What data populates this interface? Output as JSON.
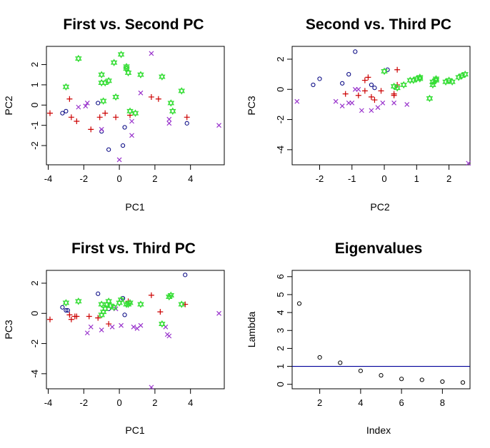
{
  "colors": {
    "circle": "#000080",
    "plus": "#cc0000",
    "x": "#9933cc",
    "star": "#33dd33",
    "refline": "#000099"
  },
  "chart_data": [
    {
      "type": "scatter",
      "title": "First vs. Second PC",
      "xlabel": "PC1",
      "ylabel": "PC2",
      "xlim": [
        -4.1,
        5.9
      ],
      "ylim": [
        -2.95,
        2.9
      ],
      "xticks": [
        -4,
        -2,
        0,
        2,
        4
      ],
      "yticks": [
        -2,
        -1,
        0,
        1,
        2
      ],
      "series": [
        {
          "marker": "circle",
          "color": "#000080",
          "points": [
            [
              -3.2,
              -0.4
            ],
            [
              -3.0,
              -0.3
            ],
            [
              -1.2,
              0.1
            ],
            [
              -0.6,
              -2.2
            ],
            [
              0.2,
              -2.0
            ],
            [
              0.3,
              -1.1
            ],
            [
              3.8,
              -0.9
            ],
            [
              -1.0,
              -1.3
            ]
          ]
        },
        {
          "marker": "plus",
          "color": "#cc0000",
          "points": [
            [
              -3.9,
              -0.4
            ],
            [
              -2.8,
              0.3
            ],
            [
              -2.7,
              -0.6
            ],
            [
              -2.4,
              -0.8
            ],
            [
              -1.6,
              -1.2
            ],
            [
              -1.1,
              -0.6
            ],
            [
              -0.8,
              -0.4
            ],
            [
              -0.2,
              -0.6
            ],
            [
              0.6,
              -0.5
            ],
            [
              1.8,
              0.4
            ],
            [
              2.2,
              0.3
            ],
            [
              3.8,
              -0.6
            ]
          ]
        },
        {
          "marker": "x",
          "color": "#9933cc",
          "points": [
            [
              -2.3,
              -0.1
            ],
            [
              -1.9,
              -0.05
            ],
            [
              -1.8,
              0.1
            ],
            [
              -1.0,
              -1.2
            ],
            [
              0.0,
              -2.7
            ],
            [
              0.7,
              -0.8
            ],
            [
              0.7,
              -1.5
            ],
            [
              1.2,
              0.6
            ],
            [
              1.8,
              2.55
            ],
            [
              2.8,
              -0.7
            ],
            [
              2.8,
              -0.9
            ],
            [
              5.6,
              -1.0
            ]
          ]
        },
        {
          "marker": "star",
          "color": "#33dd33",
          "points": [
            [
              -3.0,
              0.9
            ],
            [
              -2.3,
              2.3
            ],
            [
              -1.0,
              1.5
            ],
            [
              -1.0,
              1.1
            ],
            [
              -0.8,
              1.1
            ],
            [
              -0.6,
              1.2
            ],
            [
              -0.3,
              2.1
            ],
            [
              -0.2,
              0.4
            ],
            [
              0.1,
              2.5
            ],
            [
              0.4,
              1.8
            ],
            [
              0.4,
              1.9
            ],
            [
              0.5,
              1.6
            ],
            [
              1.2,
              1.5
            ],
            [
              0.6,
              -0.3
            ],
            [
              0.9,
              -0.4
            ],
            [
              -0.9,
              0.2
            ],
            [
              2.4,
              1.4
            ],
            [
              2.9,
              0.1
            ],
            [
              3.0,
              -0.3
            ],
            [
              3.5,
              0.7
            ]
          ]
        }
      ]
    },
    {
      "type": "scatter",
      "title": "Second vs. Third PC",
      "xlabel": "PC2",
      "ylabel": "PC3",
      "xlim": [
        -2.85,
        2.65
      ],
      "ylim": [
        -5.0,
        2.85
      ],
      "xticks": [
        -2,
        -1,
        0,
        1,
        2
      ],
      "yticks": [
        -4,
        -2,
        0,
        2
      ],
      "series": [
        {
          "marker": "circle",
          "color": "#000080",
          "points": [
            [
              -2.2,
              0.3
            ],
            [
              -2.0,
              0.7
            ],
            [
              -1.3,
              0.4
            ],
            [
              -1.1,
              1.0
            ],
            [
              -0.9,
              2.5
            ],
            [
              -0.4,
              0.3
            ],
            [
              -0.3,
              0.1
            ],
            [
              0.1,
              1.3
            ]
          ]
        },
        {
          "marker": "plus",
          "color": "#cc0000",
          "points": [
            [
              -1.2,
              -0.3
            ],
            [
              -0.8,
              -0.4
            ],
            [
              -0.6,
              -0.1
            ],
            [
              -0.6,
              0.6
            ],
            [
              -0.5,
              0.8
            ],
            [
              -0.4,
              -0.5
            ],
            [
              -0.3,
              -0.7
            ],
            [
              -0.1,
              -0.1
            ],
            [
              0.3,
              -0.3
            ],
            [
              0.3,
              -0.4
            ],
            [
              0.4,
              1.3
            ],
            [
              0.4,
              0.3
            ]
          ]
        },
        {
          "marker": "x",
          "color": "#9933cc",
          "points": [
            [
              -2.7,
              -0.8
            ],
            [
              -1.5,
              -0.8
            ],
            [
              -1.3,
              -1.1
            ],
            [
              -1.1,
              -0.9
            ],
            [
              -1.0,
              -0.9
            ],
            [
              -0.9,
              0.0
            ],
            [
              -0.8,
              0.0
            ],
            [
              -0.7,
              -1.4
            ],
            [
              -0.4,
              -1.4
            ],
            [
              -0.2,
              -1.2
            ],
            [
              -0.05,
              -0.9
            ],
            [
              0.3,
              -0.9
            ],
            [
              0.7,
              -1.0
            ],
            [
              2.6,
              -4.9
            ]
          ]
        },
        {
          "marker": "star",
          "color": "#33dd33",
          "points": [
            [
              0.0,
              1.2
            ],
            [
              0.3,
              0.2
            ],
            [
              0.4,
              0.1
            ],
            [
              0.6,
              0.3
            ],
            [
              0.8,
              0.6
            ],
            [
              0.9,
              0.6
            ],
            [
              1.0,
              0.7
            ],
            [
              1.1,
              0.7
            ],
            [
              1.1,
              0.8
            ],
            [
              1.4,
              -0.6
            ],
            [
              1.5,
              0.3
            ],
            [
              1.5,
              0.5
            ],
            [
              1.6,
              0.6
            ],
            [
              1.6,
              0.7
            ],
            [
              1.9,
              0.5
            ],
            [
              2.0,
              0.6
            ],
            [
              2.1,
              0.5
            ],
            [
              2.3,
              0.8
            ],
            [
              2.4,
              0.9
            ],
            [
              2.5,
              1.0
            ]
          ]
        }
      ]
    },
    {
      "type": "scatter",
      "title": "First vs. Third PC",
      "xlabel": "PC1",
      "ylabel": "PC3",
      "xlim": [
        -4.1,
        5.9
      ],
      "ylim": [
        -5.0,
        2.85
      ],
      "xticks": [
        -4,
        -2,
        0,
        2,
        4
      ],
      "yticks": [
        -4,
        -2,
        0,
        2
      ],
      "series": [
        {
          "marker": "circle",
          "color": "#000080",
          "points": [
            [
              -3.2,
              0.4
            ],
            [
              -3.0,
              0.2
            ],
            [
              -2.9,
              0.2
            ],
            [
              -1.2,
              1.3
            ],
            [
              -0.6,
              0.3
            ],
            [
              0.2,
              1.0
            ],
            [
              0.3,
              -0.1
            ],
            [
              3.7,
              2.55
            ]
          ]
        },
        {
          "marker": "plus",
          "color": "#cc0000",
          "points": [
            [
              -3.9,
              -0.4
            ],
            [
              -2.8,
              -0.1
            ],
            [
              -2.7,
              -0.4
            ],
            [
              -2.5,
              -0.2
            ],
            [
              -2.4,
              -0.2
            ],
            [
              -1.7,
              -0.2
            ],
            [
              -1.2,
              -0.3
            ],
            [
              -0.6,
              -0.7
            ],
            [
              0.5,
              0.8
            ],
            [
              1.8,
              1.2
            ],
            [
              2.3,
              0.1
            ],
            [
              3.7,
              0.6
            ]
          ]
        },
        {
          "marker": "x",
          "color": "#9933cc",
          "points": [
            [
              -1.8,
              -1.3
            ],
            [
              -1.6,
              -0.9
            ],
            [
              -1.0,
              -1.1
            ],
            [
              -0.4,
              -0.9
            ],
            [
              -0.2,
              0.3
            ],
            [
              0.1,
              -0.8
            ],
            [
              0.8,
              -0.9
            ],
            [
              1.0,
              -1.0
            ],
            [
              1.2,
              -0.8
            ],
            [
              1.8,
              -4.9
            ],
            [
              2.7,
              -1.4
            ],
            [
              2.8,
              -1.5
            ],
            [
              2.6,
              -0.9
            ],
            [
              5.6,
              0.0
            ]
          ]
        },
        {
          "marker": "star",
          "color": "#33dd33",
          "points": [
            [
              -3.0,
              0.7
            ],
            [
              -2.3,
              0.8
            ],
            [
              -1.0,
              0.6
            ],
            [
              -0.9,
              0.1
            ],
            [
              -0.8,
              0.3
            ],
            [
              -0.7,
              0.6
            ],
            [
              -0.6,
              0.8
            ],
            [
              -0.5,
              0.5
            ],
            [
              -0.3,
              0.4
            ],
            [
              0.0,
              0.7
            ],
            [
              0.1,
              0.9
            ],
            [
              0.4,
              0.6
            ],
            [
              0.5,
              0.6
            ],
            [
              0.6,
              0.7
            ],
            [
              1.2,
              0.6
            ],
            [
              2.4,
              -0.7
            ],
            [
              2.9,
              1.2
            ],
            [
              2.8,
              1.1
            ],
            [
              3.5,
              0.6
            ],
            [
              -1.0,
              -0.1
            ]
          ]
        }
      ]
    },
    {
      "type": "scatter",
      "title": "Eigenvalues",
      "xlabel": "Index",
      "ylabel": "Lambda",
      "xlim": [
        0.65,
        9.35
      ],
      "ylim": [
        -0.25,
        6.35
      ],
      "xticks": [
        2,
        4,
        6,
        8
      ],
      "yticks": [
        0,
        1,
        2,
        3,
        4,
        5,
        6
      ],
      "hline": 1,
      "series": [
        {
          "marker": "circle",
          "color": "#000000",
          "points": [
            [
              1,
              4.5
            ],
            [
              2,
              1.5
            ],
            [
              3,
              1.2
            ],
            [
              4,
              0.75
            ],
            [
              5,
              0.5
            ],
            [
              6,
              0.3
            ],
            [
              7,
              0.25
            ],
            [
              8,
              0.15
            ],
            [
              9,
              0.1
            ]
          ]
        }
      ]
    }
  ]
}
